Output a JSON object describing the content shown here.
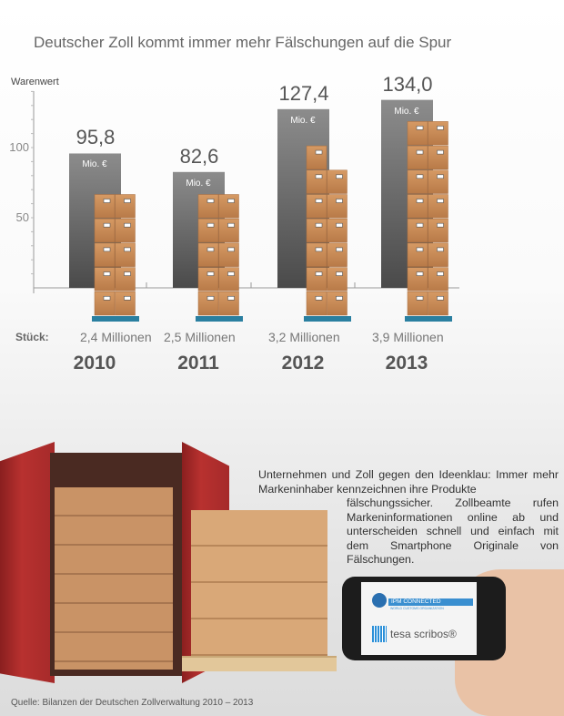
{
  "title": "Deutscher Zoll kommt immer mehr Fälschungen auf die Spur",
  "chart_data": {
    "type": "bar",
    "title": "Deutscher Zoll kommt immer mehr Fälschungen auf die Spur",
    "ylabel": "Warenwert",
    "ylim": [
      0,
      140
    ],
    "yticks": [
      "50",
      "100"
    ],
    "categories": [
      "2010",
      "2011",
      "2012",
      "2013"
    ],
    "series": [
      {
        "name": "Warenwert (Mio. €)",
        "values": [
          95.8,
          82.6,
          127.4,
          134.0
        ]
      }
    ],
    "value_labels": [
      "95,8",
      "82,6",
      "127,4",
      "134,0"
    ],
    "unit_label": "Mio. €",
    "pieces_prefix": "Stück:",
    "pieces_values": [
      2.4,
      2.5,
      3.2,
      3.9
    ],
    "pieces_labels": [
      "2,4 Millionen",
      "2,5 Millionen",
      "3,2 Millionen",
      "3,9 Millionen"
    ],
    "grid": false
  },
  "colors": {
    "bar_top": "#8c8c8c",
    "bar_bottom": "#4a4a4a",
    "box": "#c98a55",
    "pallet": "#2a7fa0",
    "container": "#b3302e"
  },
  "description": {
    "line1": "Unternehmen und Zoll gegen den Ideenklau: Immer mehr Markeninhaber kennzeichnen ihre Produkte",
    "line2": "fälschungssicher. Zollbeamte rufen Markeninformationen online ab und unterscheiden schnell und einfach mit dem Smartphone Originale von Fälschungen."
  },
  "phone": {
    "logo1": "IPM CONNECTED",
    "logo1_sub": "WORLD CUSTOMS ORGANIZATION",
    "logo2": "tesa scribos®"
  },
  "source": "Quelle: Bilanzen der Deutschen Zollverwaltung 2010 – 2013"
}
